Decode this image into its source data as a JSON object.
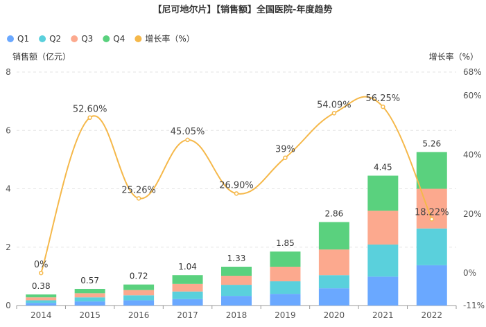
{
  "chart_data": {
    "type": "bar",
    "stacked": true,
    "title": "【尼可地尔片】【销售额】全国医院-年度趋势",
    "ylabel_left": "销售额（亿元）",
    "ylabel_right": "增长率（%）",
    "categories": [
      "2014",
      "2015",
      "2016",
      "2017",
      "2018",
      "2019",
      "2020",
      "2021",
      "2022"
    ],
    "y_left": {
      "min": 0,
      "max": 8,
      "ticks": [
        "0",
        "2",
        "4",
        "6",
        "8"
      ]
    },
    "y_right": {
      "min": -11,
      "max": 68,
      "ticks": [
        {
          "value": -11,
          "label": "-11%"
        },
        {
          "value": 0,
          "label": "0%"
        },
        {
          "value": 20,
          "label": "20%"
        },
        {
          "value": 40,
          "label": "40%"
        },
        {
          "value": 60,
          "label": "60%"
        },
        {
          "value": 68,
          "label": "68%"
        }
      ]
    },
    "series": [
      {
        "name": "Q1",
        "color": "#6aa8ff",
        "values": [
          0.09,
          0.14,
          0.18,
          0.22,
          0.33,
          0.4,
          0.59,
          0.99,
          1.38
        ]
      },
      {
        "name": "Q2",
        "color": "#5ad0dc",
        "values": [
          0.09,
          0.14,
          0.17,
          0.26,
          0.38,
          0.43,
          0.45,
          1.1,
          1.26
        ]
      },
      {
        "name": "Q3",
        "color": "#fca98e",
        "values": [
          0.1,
          0.14,
          0.18,
          0.26,
          0.31,
          0.5,
          0.88,
          1.16,
          1.36
        ]
      },
      {
        "name": "Q4",
        "color": "#5ad17e",
        "values": [
          0.1,
          0.15,
          0.19,
          0.3,
          0.31,
          0.52,
          0.94,
          1.2,
          1.26
        ]
      }
    ],
    "totals": [
      0.38,
      0.57,
      0.72,
      1.04,
      1.33,
      1.85,
      2.86,
      4.45,
      5.26
    ],
    "total_labels": [
      "0.38",
      "0.57",
      "0.72",
      "1.04",
      "1.33",
      "1.85",
      "2.86",
      "4.45",
      "5.26"
    ],
    "growth": {
      "name": "增长率（%）",
      "color": "#f5b84a",
      "values": [
        0,
        52.6,
        25.26,
        45.05,
        26.9,
        39,
        54.09,
        56.25,
        18.22
      ],
      "labels": [
        "0%",
        "52.60%",
        "25.26%",
        "45.05%",
        "26.90%",
        "39%",
        "54.09%",
        "56.25%",
        "18.22%"
      ]
    },
    "legend": [
      {
        "name": "Q1",
        "color": "#6aa8ff"
      },
      {
        "name": "Q2",
        "color": "#5ad0dc"
      },
      {
        "name": "Q3",
        "color": "#fca98e"
      },
      {
        "name": "Q4",
        "color": "#5ad17e"
      },
      {
        "name": "增长率（%）",
        "color": "#f5b84a"
      }
    ],
    "legend_position": "top-left",
    "grid": true
  }
}
